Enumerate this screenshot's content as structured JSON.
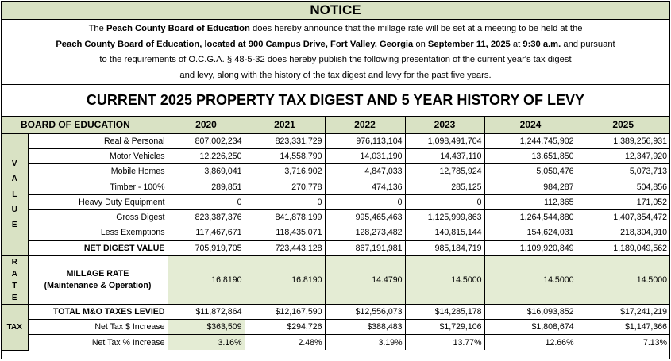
{
  "notice_title": "NOTICE",
  "intro": {
    "l1_a": "The ",
    "l1_b": "Peach County Board of Education",
    "l1_c": " does hereby announce that the millage rate will be set at a meeting to be held at the",
    "l2_a": "Peach County Board of Education, located at 900 Campus Drive, Fort Valley, Georgia",
    "l2_b": " on ",
    "l2_c": "September 11, 2025",
    "l2_d": " at ",
    "l2_e": "9:30 a.m.",
    "l2_f": " and pursuant",
    "l3": "to the requirements of O.C.G.A. § 48-5-32 does hereby publish the following presentation of the current year's tax digest",
    "l4": "and levy, along with the history of the tax digest and levy for the past five years."
  },
  "main_title": "CURRENT 2025 PROPERTY TAX DIGEST AND 5 YEAR HISTORY OF LEVY",
  "table": {
    "board_header": "BOARD OF EDUCATION",
    "years": [
      "2020",
      "2021",
      "2022",
      "2023",
      "2024",
      "2025"
    ],
    "value_side": [
      "V",
      "A",
      "L",
      "U",
      "E"
    ],
    "rate_side": [
      "R",
      "A",
      "T",
      "E"
    ],
    "tax_side": "TAX",
    "rows": {
      "real": {
        "label": "Real & Personal",
        "values": [
          "807,002,234",
          "823,331,729",
          "976,113,104",
          "1,098,491,704",
          "1,244,745,902",
          "1,389,256,931"
        ]
      },
      "motor": {
        "label": "Motor Vehicles",
        "values": [
          "12,226,250",
          "14,558,790",
          "14,031,190",
          "14,437,110",
          "13,651,850",
          "12,347,920"
        ]
      },
      "mobile": {
        "label": "Mobile Homes",
        "values": [
          "3,869,041",
          "3,716,902",
          "4,847,033",
          "12,785,924",
          "5,050,476",
          "5,073,713"
        ]
      },
      "timber": {
        "label": "Timber - 100%",
        "values": [
          "289,851",
          "270,778",
          "474,136",
          "285,125",
          "984,287",
          "504,856"
        ]
      },
      "heavy": {
        "label": "Heavy Duty Equipment",
        "values": [
          "0",
          "0",
          "0",
          "0",
          "112,365",
          "171,052"
        ]
      },
      "gross": {
        "label": "Gross Digest",
        "values": [
          "823,387,376",
          "841,878,199",
          "995,465,463",
          "1,125,999,863",
          "1,264,544,880",
          "1,407,354,472"
        ]
      },
      "less": {
        "label": "Less Exemptions",
        "values": [
          "117,467,671",
          "118,435,071",
          "128,273,482",
          "140,815,144",
          "154,624,031",
          "218,304,910"
        ]
      },
      "net": {
        "label": "NET DIGEST VALUE",
        "values": [
          "705,919,705",
          "723,443,128",
          "867,191,981",
          "985,184,719",
          "1,109,920,849",
          "1,189,049,562"
        ]
      },
      "millage": {
        "label1": "MILLAGE RATE",
        "label2": "(Maintenance & Operation)",
        "values": [
          "16.8190",
          "16.8190",
          "14.4790",
          "14.5000",
          "14.5000",
          "14.5000"
        ]
      },
      "total": {
        "label": "TOTAL M&O TAXES LEVIED",
        "values": [
          "$11,872,864",
          "$12,167,590",
          "$12,556,073",
          "$14,285,178",
          "$16,093,852",
          "$17,241,219"
        ]
      },
      "net_tax": {
        "label": "Net Tax $ Increase",
        "values": [
          "$363,509",
          "$294,726",
          "$388,483",
          "$1,729,106",
          "$1,808,674",
          "$1,147,366"
        ]
      },
      "net_pct": {
        "label": "Net Tax % Increase",
        "values": [
          "3.16%",
          "2.48%",
          "3.19%",
          "13.77%",
          "12.66%",
          "7.13%"
        ]
      }
    }
  }
}
